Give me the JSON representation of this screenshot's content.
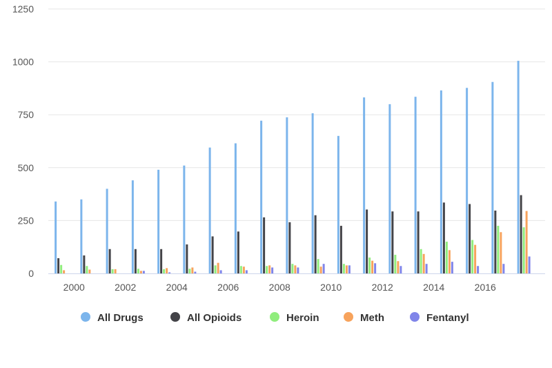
{
  "chart_data": {
    "type": "bar",
    "title": "",
    "xlabel": "",
    "ylabel": "",
    "ylim": [
      0,
      1250
    ],
    "y_ticks": [
      "0",
      "250",
      "500",
      "750",
      "1000",
      "1250"
    ],
    "x_tick_labels": [
      "2000",
      "2002",
      "2004",
      "2006",
      "2008",
      "2010",
      "2012",
      "2014",
      "2016"
    ],
    "categories": [
      1999,
      2000,
      2001,
      2002,
      2003,
      2004,
      2005,
      2006,
      2007,
      2008,
      2009,
      2010,
      2011,
      2012,
      2013,
      2014,
      2015,
      2016,
      2017
    ],
    "grid": "horizontal",
    "legend_position": "bottom",
    "series": [
      {
        "name": "All Drugs",
        "color": "#7cb5ec",
        "values": [
          340,
          350,
          400,
          440,
          490,
          510,
          595,
          615,
          722,
          738,
          757,
          650,
          832,
          800,
          835,
          865,
          877,
          905,
          1005
        ]
      },
      {
        "name": "All Opioids",
        "color": "#434348",
        "values": [
          72,
          85,
          115,
          115,
          115,
          137,
          175,
          198,
          265,
          242,
          275,
          225,
          302,
          293,
          293,
          335,
          328,
          297,
          370
        ]
      },
      {
        "name": "Heroin",
        "color": "#90ed7d",
        "values": [
          40,
          35,
          20,
          22,
          20,
          22,
          38,
          35,
          35,
          45,
          68,
          45,
          75,
          88,
          115,
          150,
          158,
          225,
          218
        ]
      },
      {
        "name": "Meth",
        "color": "#f7a35c",
        "values": [
          15,
          18,
          20,
          12,
          25,
          28,
          50,
          32,
          38,
          38,
          32,
          38,
          60,
          58,
          92,
          110,
          135,
          195,
          295
        ]
      },
      {
        "name": "Fentanyl",
        "color": "#8085e9",
        "values": [
          0,
          0,
          0,
          12,
          5,
          8,
          15,
          15,
          28,
          28,
          45,
          38,
          48,
          35,
          45,
          55,
          35,
          45,
          80
        ]
      }
    ]
  }
}
